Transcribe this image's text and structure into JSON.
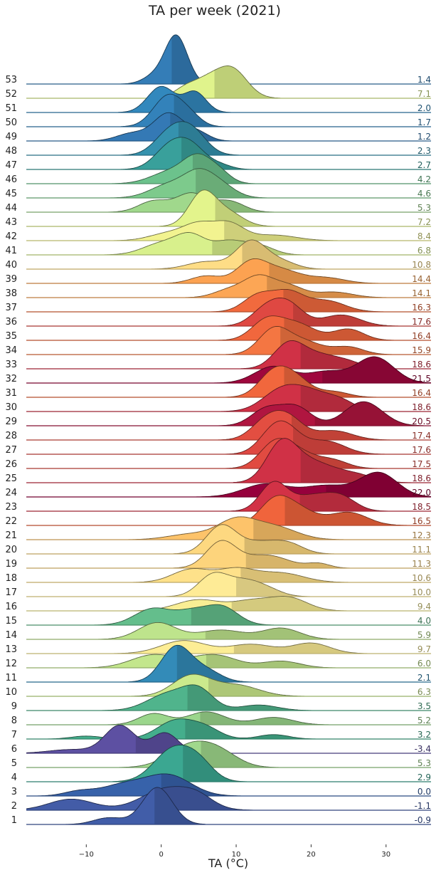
{
  "chart_data": {
    "type": "ridgeline",
    "title": "TA per week (2021)",
    "xlabel": "TA (°C)",
    "ylabel": "",
    "x_ticks": [
      -10,
      0,
      10,
      20,
      30
    ],
    "xlim": [
      -18,
      36
    ],
    "weeks": [
      {
        "week": 1,
        "mean": -0.9,
        "peaks": [
          [
            -0.5,
            1.0,
            2.0
          ],
          [
            -7,
            0.18,
            2.0
          ]
        ]
      },
      {
        "week": 2,
        "mean": -1.1,
        "peaks": [
          [
            1,
            0.6,
            3.5
          ],
          [
            -12,
            0.3,
            3.0
          ],
          [
            5,
            0.2,
            2.0
          ]
        ]
      },
      {
        "week": 3,
        "mean": -0.0,
        "peaks": [
          [
            1,
            0.55,
            3.0
          ],
          [
            -5,
            0.3,
            3.0
          ],
          [
            -11,
            0.12,
            2.0
          ]
        ]
      },
      {
        "week": 4,
        "mean": 2.9,
        "peaks": [
          [
            1.5,
            0.85,
            2.5
          ],
          [
            5,
            0.45,
            2.0
          ]
        ]
      },
      {
        "week": 5,
        "mean": 5.3,
        "peaks": [
          [
            4,
            0.6,
            3.0
          ],
          [
            8,
            0.3,
            2.5
          ]
        ]
      },
      {
        "week": 6,
        "mean": -3.4,
        "peaks": [
          [
            -5.5,
            0.75,
            2.0
          ],
          [
            0.5,
            0.55,
            1.8
          ],
          [
            -12,
            0.1,
            3.0
          ]
        ]
      },
      {
        "week": 7,
        "mean": 3.2,
        "peaks": [
          [
            2,
            0.5,
            2.5
          ],
          [
            6,
            0.25,
            2.0
          ],
          [
            -10,
            0.08,
            2.0
          ],
          [
            15,
            0.12,
            2.0
          ]
        ]
      },
      {
        "week": 8,
        "mean": 5.2,
        "peaks": [
          [
            -1,
            0.3,
            2.0
          ],
          [
            6,
            0.35,
            2.5
          ],
          [
            15,
            0.2,
            2.5
          ]
        ]
      },
      {
        "week": 9,
        "mean": 3.5,
        "peaks": [
          [
            1,
            0.45,
            2.8
          ],
          [
            5,
            0.5,
            2.0
          ],
          [
            13,
            0.15,
            2.5
          ]
        ]
      },
      {
        "week": 10,
        "mean": 6.3,
        "peaks": [
          [
            4,
            0.55,
            2.5
          ],
          [
            10,
            0.3,
            3.0
          ]
        ]
      },
      {
        "week": 11,
        "mean": 2.1,
        "peaks": [
          [
            2,
            0.95,
            2.0
          ],
          [
            6,
            0.3,
            2.0
          ]
        ]
      },
      {
        "week": 12,
        "mean": 6.0,
        "peaks": [
          [
            -1,
            0.35,
            3.0
          ],
          [
            7,
            0.35,
            3.0
          ],
          [
            16,
            0.18,
            2.5
          ]
        ]
      },
      {
        "week": 13,
        "mean": 9.7,
        "peaks": [
          [
            3,
            0.35,
            3.0
          ],
          [
            12,
            0.25,
            3.0
          ],
          [
            20,
            0.28,
            2.5
          ]
        ]
      },
      {
        "week": 14,
        "mean": 5.9,
        "peaks": [
          [
            -0.5,
            0.45,
            2.5
          ],
          [
            8,
            0.25,
            3.0
          ],
          [
            16,
            0.3,
            2.5
          ]
        ]
      },
      {
        "week": 15,
        "mean": 4.0,
        "peaks": [
          [
            -1,
            0.45,
            2.5
          ],
          [
            8,
            0.5,
            2.2
          ],
          [
            4,
            0.3,
            2.0
          ]
        ]
      },
      {
        "week": 16,
        "mean": 9.4,
        "peaks": [
          [
            5,
            0.3,
            3.0
          ],
          [
            12,
            0.25,
            2.5
          ],
          [
            17,
            0.35,
            2.5
          ]
        ]
      },
      {
        "week": 17,
        "mean": 10.0,
        "peaks": [
          [
            7,
            0.6,
            2.0
          ],
          [
            11,
            0.35,
            2.0
          ],
          [
            14,
            0.2,
            2.0
          ]
        ]
      },
      {
        "week": 18,
        "mean": 10.6,
        "peaks": [
          [
            4,
            0.35,
            2.5
          ],
          [
            10,
            0.35,
            2.5
          ],
          [
            16,
            0.25,
            3.0
          ]
        ]
      },
      {
        "week": 19,
        "mean": 11.3,
        "peaks": [
          [
            8,
            0.7,
            2.0
          ],
          [
            14,
            0.35,
            3.0
          ],
          [
            21,
            0.12,
            1.5
          ]
        ]
      },
      {
        "week": 20,
        "mean": 11.1,
        "peaks": [
          [
            8,
            0.75,
            2.0
          ],
          [
            13,
            0.3,
            2.5
          ],
          [
            17,
            0.25,
            2.0
          ]
        ]
      },
      {
        "week": 21,
        "mean": 12.3,
        "peaks": [
          [
            4,
            0.15,
            3.0
          ],
          [
            10,
            0.5,
            2.5
          ],
          [
            15,
            0.35,
            3.0
          ]
        ]
      },
      {
        "week": 22,
        "mean": 16.5,
        "peaks": [
          [
            15,
            0.55,
            2.0
          ],
          [
            18,
            0.45,
            2.5
          ],
          [
            25,
            0.35,
            2.5
          ]
        ]
      },
      {
        "week": 23,
        "mean": 18.5,
        "peaks": [
          [
            15,
            0.75,
            1.8
          ],
          [
            20,
            0.4,
            2.5
          ],
          [
            24,
            0.35,
            2.0
          ]
        ]
      },
      {
        "week": 24,
        "mean": 22.0,
        "peaks": [
          [
            14,
            0.35,
            3.0
          ],
          [
            22,
            0.3,
            3.0
          ],
          [
            29,
            0.65,
            2.5
          ]
        ]
      },
      {
        "week": 25,
        "mean": 18.6,
        "peaks": [
          [
            16,
            0.95,
            2.0
          ],
          [
            20,
            0.55,
            3.0
          ],
          [
            26,
            0.2,
            2.5
          ]
        ]
      },
      {
        "week": 26,
        "mean": 17.5,
        "peaks": [
          [
            15,
            0.55,
            2.0
          ],
          [
            18,
            0.45,
            2.5
          ],
          [
            23,
            0.2,
            2.0
          ]
        ]
      },
      {
        "week": 27,
        "mean": 17.6,
        "peaks": [
          [
            15,
            0.55,
            2.0
          ],
          [
            17,
            0.45,
            2.0
          ],
          [
            22,
            0.35,
            2.5
          ]
        ]
      },
      {
        "week": 28,
        "mean": 17.4,
        "peaks": [
          [
            14,
            0.5,
            2.0
          ],
          [
            17,
            0.55,
            2.0
          ],
          [
            23,
            0.25,
            2.5
          ]
        ]
      },
      {
        "week": 29,
        "mean": 20.5,
        "peaks": [
          [
            14,
            0.45,
            2.0
          ],
          [
            18,
            0.5,
            2.0
          ],
          [
            27,
            0.65,
            2.5
          ]
        ]
      },
      {
        "week": 30,
        "mean": 18.6,
        "peaks": [
          [
            16,
            0.55,
            2.5
          ],
          [
            20,
            0.45,
            2.5
          ],
          [
            24,
            0.25,
            2.0
          ]
        ]
      },
      {
        "week": 31,
        "mean": 16.4,
        "peaks": [
          [
            15,
            0.65,
            2.0
          ],
          [
            18,
            0.45,
            2.0
          ],
          [
            23,
            0.15,
            2.0
          ]
        ]
      },
      {
        "week": 32,
        "mean": 21.5,
        "peaks": [
          [
            15,
            0.45,
            2.5
          ],
          [
            22,
            0.3,
            2.5
          ],
          [
            28.5,
            0.7,
            2.5
          ]
        ]
      },
      {
        "week": 33,
        "mean": 18.6,
        "peaks": [
          [
            17,
            0.65,
            2.0
          ],
          [
            21,
            0.35,
            2.5
          ],
          [
            25,
            0.15,
            2.0
          ]
        ]
      },
      {
        "week": 34,
        "mean": 15.9,
        "peaks": [
          [
            15,
            0.65,
            2.0
          ],
          [
            19,
            0.35,
            2.5
          ],
          [
            25,
            0.2,
            2.0
          ]
        ]
      },
      {
        "week": 35,
        "mean": 16.4,
        "peaks": [
          [
            14,
            0.5,
            2.0
          ],
          [
            18,
            0.45,
            2.5
          ],
          [
            25,
            0.3,
            2.0
          ]
        ]
      },
      {
        "week": 36,
        "mean": 17.6,
        "peaks": [
          [
            14,
            0.45,
            2.0
          ],
          [
            17,
            0.55,
            2.0
          ],
          [
            24,
            0.3,
            2.5
          ]
        ]
      },
      {
        "week": 37,
        "mean": 16.3,
        "peaks": [
          [
            13,
            0.45,
            2.0
          ],
          [
            17,
            0.5,
            2.0
          ],
          [
            22,
            0.3,
            2.5
          ]
        ]
      },
      {
        "week": 38,
        "mean": 14.1,
        "peaks": [
          [
            9,
            0.2,
            2.0
          ],
          [
            13,
            0.55,
            2.0
          ],
          [
            17,
            0.3,
            2.0
          ],
          [
            23,
            0.15,
            2.5
          ]
        ]
      },
      {
        "week": 39,
        "mean": 14.4,
        "peaks": [
          [
            6,
            0.2,
            2.0
          ],
          [
            12,
            0.55,
            2.0
          ],
          [
            16,
            0.35,
            2.5
          ],
          [
            22,
            0.15,
            2.5
          ]
        ]
      },
      {
        "week": 40,
        "mean": 10.8,
        "peaks": [
          [
            6,
            0.2,
            2.5
          ],
          [
            12,
            0.75,
            2.0
          ],
          [
            16,
            0.2,
            2.0
          ]
        ]
      },
      {
        "week": 41,
        "mean": 6.8,
        "peaks": [
          [
            0,
            0.3,
            2.5
          ],
          [
            4,
            0.5,
            2.0
          ],
          [
            9,
            0.35,
            2.0
          ],
          [
            13,
            0.25,
            2.0
          ]
        ]
      },
      {
        "week": 42,
        "mean": 8.4,
        "peaks": [
          [
            1,
            0.2,
            2.5
          ],
          [
            5,
            0.4,
            2.0
          ],
          [
            9,
            0.45,
            2.0
          ],
          [
            15,
            0.15,
            3.0
          ]
        ]
      },
      {
        "week": 43,
        "mean": 7.2,
        "peaks": [
          [
            5.5,
            0.9,
            1.8
          ],
          [
            9,
            0.35,
            2.0
          ]
        ]
      },
      {
        "week": 44,
        "mean": 5.3,
        "peaks": [
          [
            -1,
            0.3,
            2.0
          ],
          [
            4,
            0.5,
            2.0
          ],
          [
            9,
            0.3,
            2.0
          ]
        ]
      },
      {
        "week": 45,
        "mean": 4.6,
        "peaks": [
          [
            1,
            0.35,
            2.5
          ],
          [
            5,
            0.6,
            2.0
          ],
          [
            8,
            0.3,
            2.0
          ]
        ]
      },
      {
        "week": 46,
        "mean": 4.2,
        "peaks": [
          [
            1,
            0.3,
            2.5
          ],
          [
            5,
            0.7,
            2.0
          ],
          [
            8,
            0.2,
            1.5
          ]
        ]
      },
      {
        "week": 47,
        "mean": 2.7,
        "peaks": [
          [
            1,
            0.55,
            2.0
          ],
          [
            4,
            0.6,
            2.0
          ],
          [
            8,
            0.1,
            1.5
          ]
        ]
      },
      {
        "week": 48,
        "mean": 2.3,
        "peaks": [
          [
            1,
            0.55,
            2.0
          ],
          [
            4,
            0.65,
            2.0
          ]
        ]
      },
      {
        "week": 49,
        "mean": 1.2,
        "peaks": [
          [
            1,
            0.75,
            2.0
          ],
          [
            -4,
            0.2,
            2.0
          ],
          [
            5,
            0.2,
            1.5
          ]
        ]
      },
      {
        "week": 50,
        "mean": 1.7,
        "peaks": [
          [
            1,
            0.85,
            2.0
          ],
          [
            4,
            0.2,
            1.5
          ]
        ]
      },
      {
        "week": 51,
        "mean": 2.0,
        "peaks": [
          [
            0,
            0.7,
            1.8
          ],
          [
            4.5,
            0.55,
            1.5
          ]
        ]
      },
      {
        "week": 52,
        "mean": 7.1,
        "peaks": [
          [
            3,
            0.2,
            1.5
          ],
          [
            6,
            0.45,
            2.0
          ],
          [
            9.5,
            0.75,
            2.0
          ]
        ]
      },
      {
        "week": 53,
        "mean": 1.4,
        "peaks": [
          [
            2,
            1.3,
            1.5
          ],
          [
            -1,
            0.2,
            1.5
          ]
        ]
      }
    ]
  }
}
